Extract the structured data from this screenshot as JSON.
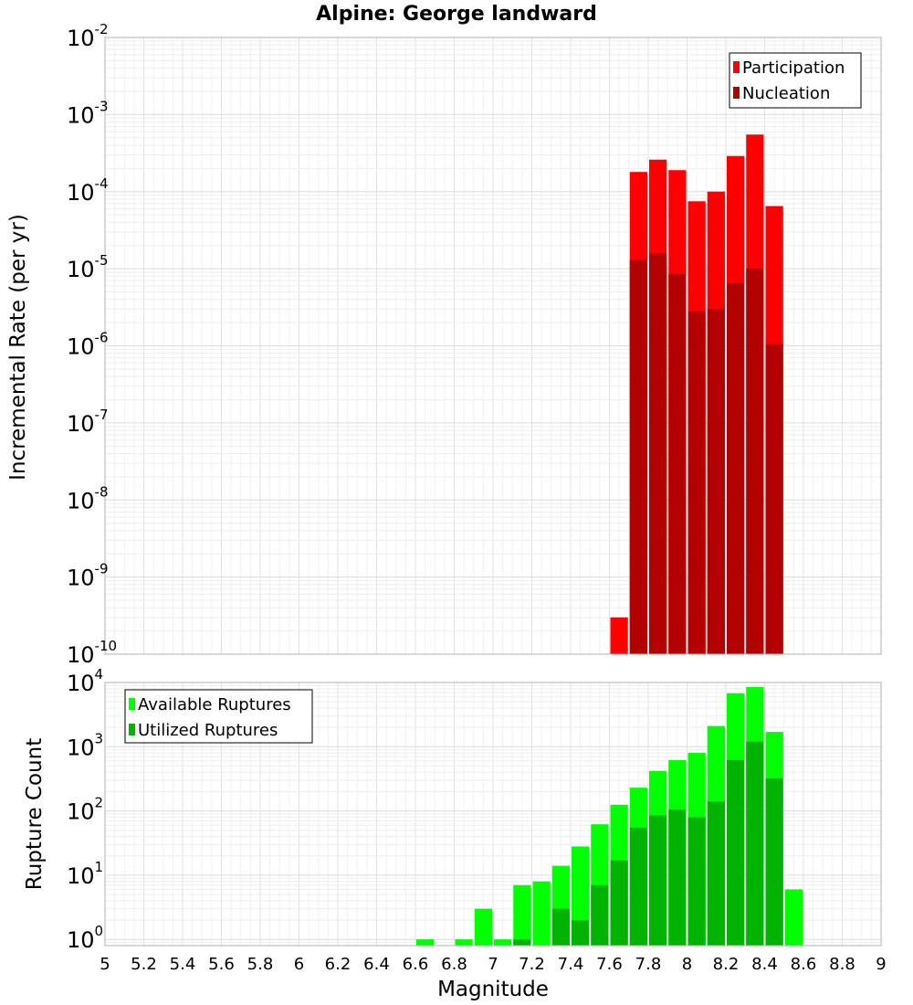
{
  "chart_data": [
    {
      "type": "bar",
      "title": "Alpine: George landward",
      "ylabel": "Incremental Rate (per yr)",
      "xlabel": "",
      "y_scale": "log",
      "ylim": [
        1e-10,
        0.01
      ],
      "xlim": [
        5,
        9
      ],
      "bin_width": 0.1,
      "grid": true,
      "legend_position": "top-right",
      "y_tick_exponents": [
        -10,
        -9,
        -8,
        -7,
        -6,
        -5,
        -4,
        -3,
        -2
      ],
      "series": [
        {
          "name": "Participation",
          "color": "#ff0000",
          "x": [
            7.65,
            7.75,
            7.85,
            7.95,
            8.05,
            8.15,
            8.25,
            8.35,
            8.45
          ],
          "values": [
            3e-10,
            0.00018,
            0.00026,
            0.00019,
            7.5e-05,
            0.0001,
            0.00029,
            0.00055,
            6.5e-05
          ]
        },
        {
          "name": "Nucleation",
          "color": "#b30000",
          "x": [
            7.75,
            7.85,
            7.95,
            8.05,
            8.15,
            8.25,
            8.35,
            8.45
          ],
          "values": [
            1.3e-05,
            1.6e-05,
            8.5e-06,
            2.8e-06,
            3e-06,
            6.5e-06,
            1e-05,
            1.05e-06
          ]
        }
      ]
    },
    {
      "type": "bar",
      "title": "",
      "ylabel": "Rupture Count",
      "xlabel": "Magnitude",
      "y_scale": "log",
      "ylim": [
        0.8,
        10000
      ],
      "xlim": [
        5,
        9
      ],
      "bin_width": 0.1,
      "grid": true,
      "legend_position": "top-left",
      "y_tick_exponents": [
        0,
        1,
        2,
        3,
        4
      ],
      "x_ticks": [
        "5",
        "5.2",
        "5.4",
        "5.6",
        "5.8",
        "6",
        "6.2",
        "6.4",
        "6.6",
        "6.8",
        "7",
        "7.2",
        "7.4",
        "7.6",
        "7.8",
        "8",
        "8.2",
        "8.4",
        "8.6",
        "8.8",
        "9"
      ],
      "series": [
        {
          "name": "Available Ruptures",
          "color": "#00ff00",
          "x": [
            6.65,
            6.85,
            6.95,
            7.05,
            7.15,
            7.25,
            7.35,
            7.45,
            7.55,
            7.65,
            7.75,
            7.85,
            7.95,
            8.05,
            8.15,
            8.25,
            8.35,
            8.45,
            8.55
          ],
          "values": [
            1,
            1,
            3,
            1,
            7,
            8,
            14,
            28,
            62,
            125,
            230,
            420,
            620,
            800,
            2100,
            6800,
            8500,
            1700,
            6
          ]
        },
        {
          "name": "Utilized Ruptures",
          "color": "#00b300",
          "x": [
            7.15,
            7.35,
            7.45,
            7.55,
            7.65,
            7.75,
            7.85,
            7.95,
            8.05,
            8.15,
            8.25,
            8.35,
            8.45
          ],
          "values": [
            1,
            3,
            2,
            7,
            17,
            55,
            85,
            105,
            80,
            140,
            620,
            1200,
            320
          ]
        }
      ]
    }
  ]
}
